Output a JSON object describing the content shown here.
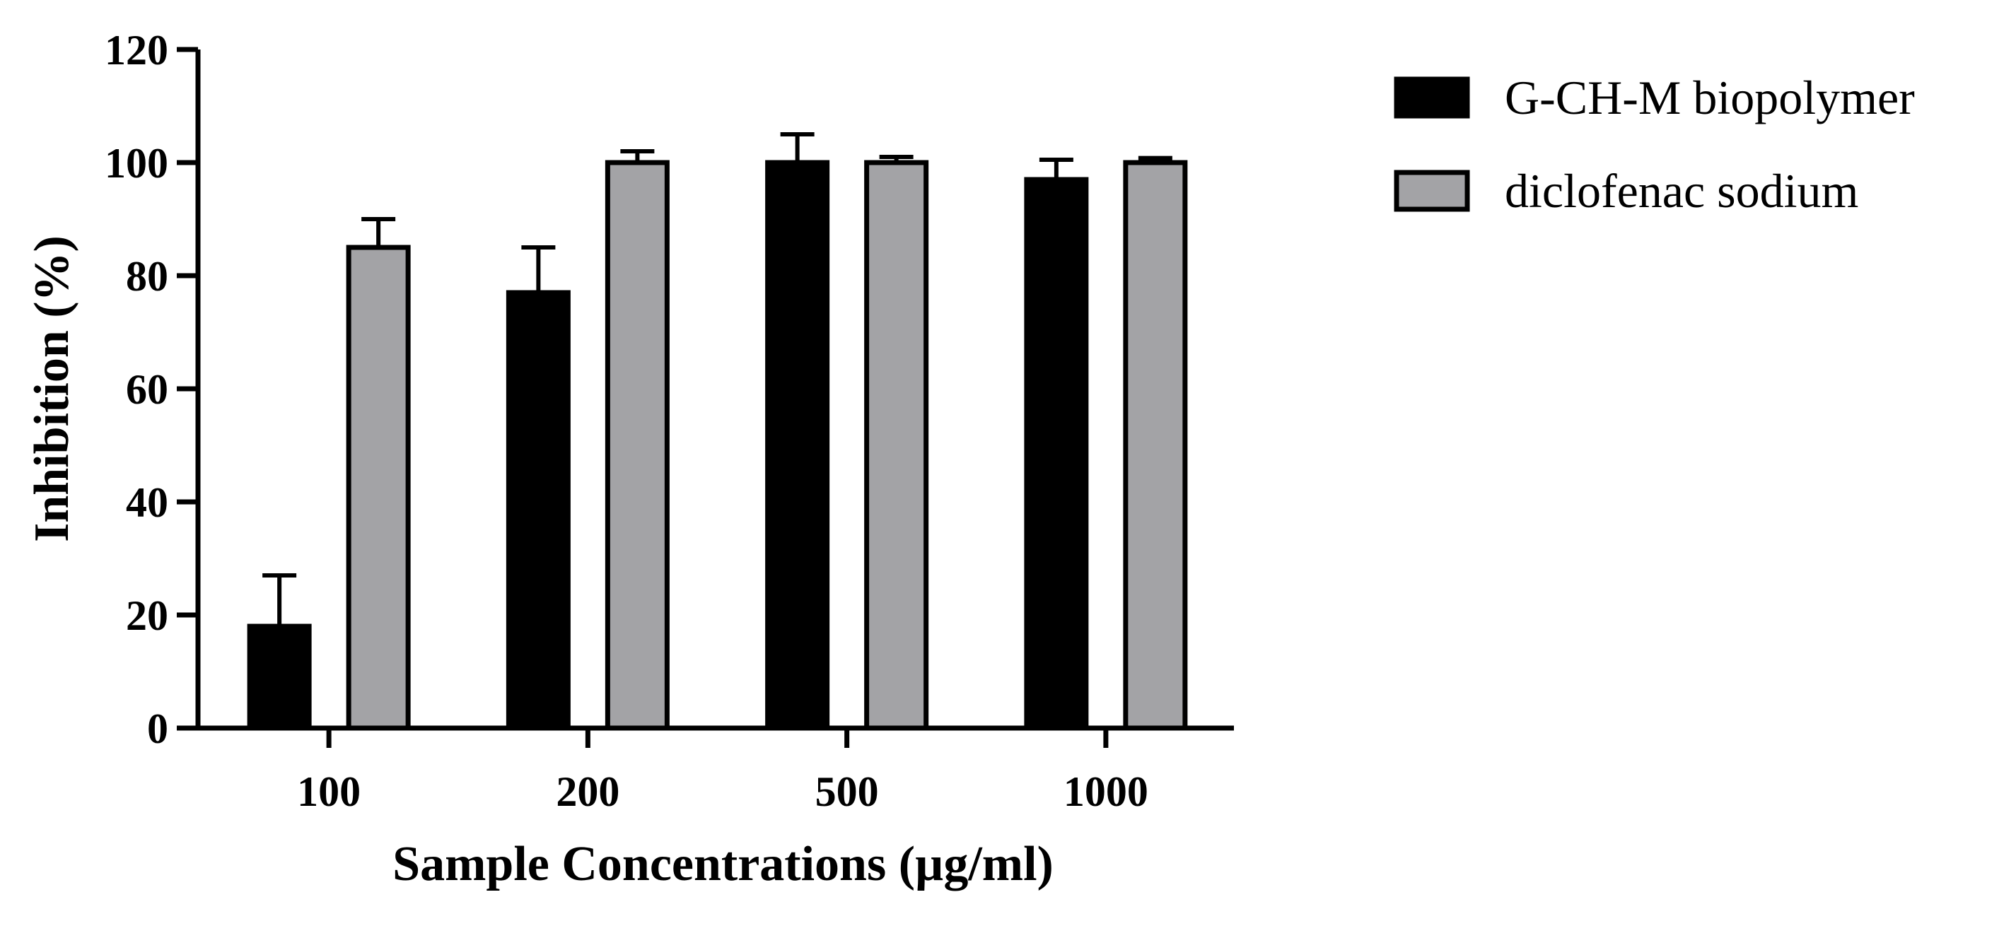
{
  "chart_data": {
    "type": "bar",
    "title": "",
    "xlabel": "Sample Concentrations (µg/ml)",
    "ylabel": "Inhibition (%)",
    "ylim": [
      0,
      120
    ],
    "yticks": [
      "0",
      "20",
      "40",
      "60",
      "80",
      "100",
      "120"
    ],
    "categories": [
      "100",
      "200",
      "500",
      "1000"
    ],
    "legend_position": "top-right",
    "series": [
      {
        "name": "G-CH-M biopolymer",
        "color": "#000000",
        "values": [
          18,
          77,
          100,
          97
        ],
        "errors": [
          9,
          8,
          5,
          3.5
        ]
      },
      {
        "name": "diclofenac sodium",
        "color": "#a3a3a6",
        "values": [
          85,
          100,
          100,
          100
        ],
        "errors": [
          5,
          2,
          1,
          0.8
        ]
      }
    ]
  }
}
